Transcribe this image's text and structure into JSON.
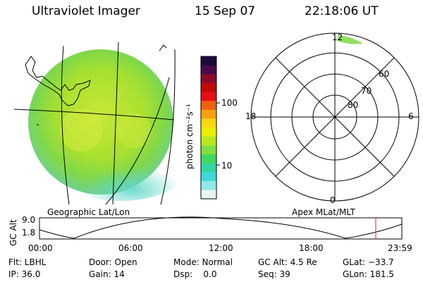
{
  "header": {
    "instrument": "Ultraviolet Imager",
    "date": "15 Sep 07",
    "time": "22:18:06 UT"
  },
  "colorbar": {
    "unit_label": "photon cm⁻²s⁻¹",
    "tick_100": "100",
    "tick_10": "10",
    "colors": [
      "#1a0a3a",
      "#4a0a4a",
      "#8a0a2a",
      "#c00a0a",
      "#e81010",
      "#f06010",
      "#f8a010",
      "#f8d810",
      "#e8f000",
      "#b8e820",
      "#80e040",
      "#40d860",
      "#30d8a0",
      "#40d8d8",
      "#90e8e8",
      "#e8f4f4"
    ]
  },
  "left_panel": {
    "label": "Geographic Lat/Lon",
    "image_color": "#a8e030"
  },
  "right_panel": {
    "label": "Apex MLat/MLT",
    "mlt_labels": {
      "top": "12",
      "left": "18",
      "right": "6",
      "bottom": "0"
    },
    "mlat_labels": [
      "60",
      "70",
      "80"
    ]
  },
  "altitude_plot": {
    "axis_label": "GC Alt",
    "y_ticks": [
      "9.0",
      "1.8"
    ],
    "x_ticks": [
      "00:00",
      "06:00",
      "12:00",
      "18:00",
      "23:59"
    ],
    "current_marker_color": "#e02020"
  },
  "info": {
    "flt": "Flt: LBHL",
    "door": "Door: Open",
    "mode": "Mode: Normal",
    "gc_alt": "GC Alt: 4.5 Re",
    "glat": "GLat: −33.7",
    "ip": "IP: 36.0",
    "gain": "Gain: 14",
    "dsp": "Dsp:    0.0",
    "seq": "Seq: 39",
    "glon": "GLon: 181.5"
  }
}
